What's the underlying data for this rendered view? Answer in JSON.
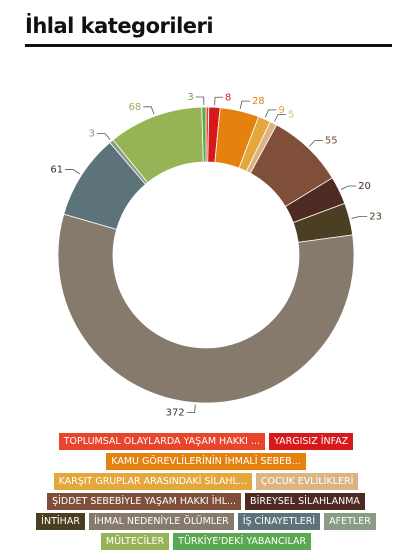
{
  "chart_data": {
    "type": "donut",
    "title": "İhlal kategorileri",
    "categories": [
      "TOPLUMSAL OLAYLARDA YAŞAM HAKKI ...",
      "YARGISIZ İNFAZ",
      "KAMU GÖREVLİLERİNİN İHMALİ SEBEB...",
      "KARŞIT GRUPLAR ARASINDAKİ SİLAHL...",
      "ÇOCUK EVLİLİKLERİ",
      "ŞİDDET SEBEBİYLE YAŞAM HAKKI İHL...",
      "BİREYSEL SİLAHLANMA",
      "İNTİHAR",
      "İHMAL NEDENİYLE ÖLÜMLER",
      "İŞ CİNAYETLERİ",
      "AFETLER",
      "MÜLTECİLER",
      "TÜRKİYE'DEKİ YABANCILAR"
    ],
    "values": [
      2,
      8,
      28,
      9,
      5,
      55,
      20,
      23,
      372,
      61,
      3,
      68,
      3
    ],
    "value_labels": [
      null,
      "8",
      "28",
      "9",
      "5",
      "55",
      "20",
      "23",
      "372",
      "61",
      "3",
      "68",
      "3"
    ],
    "colors": [
      "#e8452c",
      "#d7191c",
      "#e5820f",
      "#e3a73b",
      "#dcb483",
      "#7f4f3a",
      "#4e2a22",
      "#4a3f22",
      "#857a6c",
      "#5c7379",
      "#8a9c86",
      "#96b455",
      "#5aa84f"
    ]
  }
}
